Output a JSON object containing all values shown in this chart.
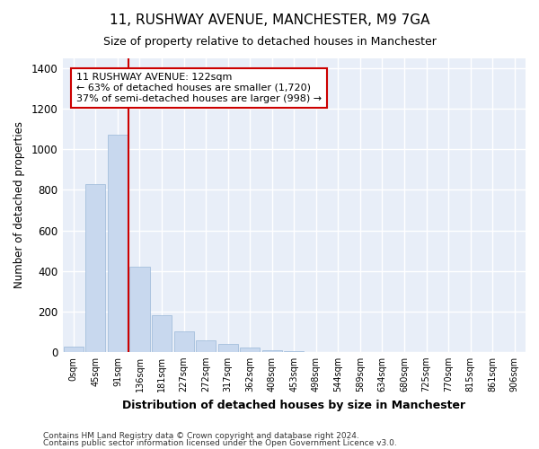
{
  "title1": "11, RUSHWAY AVENUE, MANCHESTER, M9 7GA",
  "title2": "Size of property relative to detached houses in Manchester",
  "xlabel": "Distribution of detached houses by size in Manchester",
  "ylabel": "Number of detached properties",
  "bar_color": "#c8d8ee",
  "bar_edge_color": "#9ab8d8",
  "vline_color": "#cc0000",
  "vline_x": 2.5,
  "annotation_text": "11 RUSHWAY AVENUE: 122sqm\n← 63% of detached houses are smaller (1,720)\n37% of semi-detached houses are larger (998) →",
  "annotation_box_color": "#ffffff",
  "annotation_box_edge": "#cc0000",
  "footnote1": "Contains HM Land Registry data © Crown copyright and database right 2024.",
  "footnote2": "Contains public sector information licensed under the Open Government Licence v3.0.",
  "categories": [
    "0sqm",
    "45sqm",
    "91sqm",
    "136sqm",
    "181sqm",
    "227sqm",
    "272sqm",
    "317sqm",
    "362sqm",
    "408sqm",
    "453sqm",
    "498sqm",
    "544sqm",
    "589sqm",
    "634sqm",
    "680sqm",
    "725sqm",
    "770sqm",
    "815sqm",
    "861sqm",
    "906sqm"
  ],
  "values": [
    25,
    830,
    1075,
    420,
    180,
    100,
    58,
    37,
    20,
    10,
    3,
    0,
    0,
    0,
    0,
    0,
    0,
    0,
    0,
    0,
    0
  ],
  "ylim": [
    0,
    1450
  ],
  "yticks": [
    0,
    200,
    400,
    600,
    800,
    1000,
    1200,
    1400
  ],
  "background_color": "#ffffff",
  "plot_bg": "#e8eef8",
  "grid_color": "#ffffff",
  "title1_fontsize": 11,
  "title2_fontsize": 9
}
